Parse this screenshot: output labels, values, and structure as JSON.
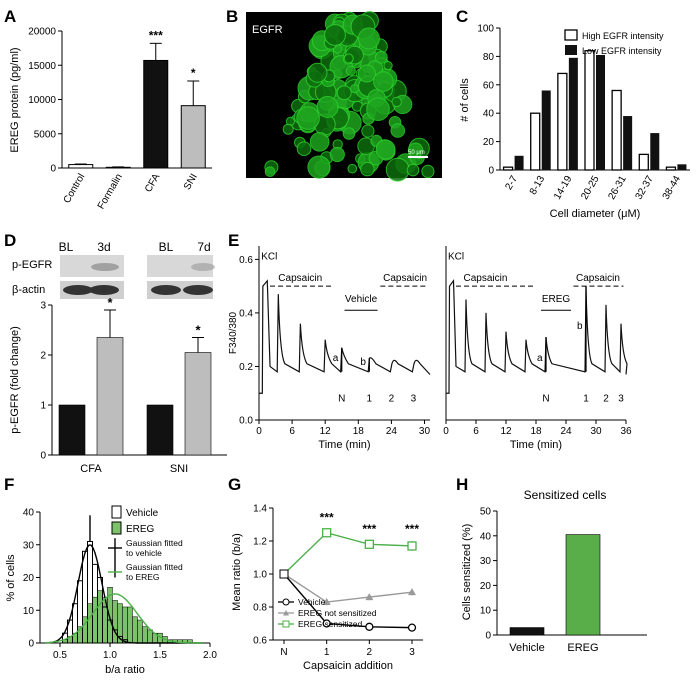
{
  "panel_letters": [
    "A",
    "B",
    "C",
    "D",
    "E",
    "F",
    "G",
    "H"
  ],
  "image_labels": {
    "egfr_label": "EGFR",
    "scale_bar": "50 μm"
  },
  "colors": {
    "black": "#111111",
    "grey": "#bdbdbd",
    "green": "#5aae4a",
    "light_green": "#7cc26a",
    "green_curve": "#4cb04a",
    "mid_grey": "#9a9a9a",
    "egfr_green": "#1fa51f"
  },
  "western": {
    "p_egfr": "p-EGFR",
    "beta_actin": "β-actin",
    "cfa_lanes": [
      "BL",
      "3d"
    ],
    "sni_lanes": [
      "BL",
      "7d"
    ]
  },
  "chart_data": [
    {
      "panel": "A",
      "type": "bar",
      "ylabel": "EREG protein (pg/ml)",
      "categories": [
        "Control",
        "Formalin",
        "CFA",
        "SNI"
      ],
      "values": [
        500,
        100,
        15700,
        9100
      ],
      "errors": [
        80,
        60,
        2500,
        3600
      ],
      "significance": [
        "",
        "",
        "***",
        "*"
      ],
      "ylim": [
        0,
        20000
      ],
      "yticks": [
        "0",
        "5000",
        "10000",
        "15000",
        "20000"
      ],
      "tick_values": [
        0,
        5000,
        10000,
        15000,
        20000
      ],
      "colors": [
        "white",
        "white",
        "#111111",
        "#bdbdbd"
      ]
    },
    {
      "panel": "C",
      "type": "bar",
      "xlabel": "Cell diameter (μM)",
      "ylabel": "# of cells",
      "categories": [
        "2-7",
        "8-13",
        "14-19",
        "20-25",
        "26-31",
        "32-37",
        "38-44"
      ],
      "series": [
        {
          "name": "High EGFR intensity",
          "values": [
            2,
            40,
            68,
            84,
            56,
            11,
            2
          ]
        },
        {
          "name": "Low EGFR intensity",
          "values": [
            10,
            56,
            79,
            81,
            38,
            26,
            4
          ]
        }
      ],
      "ylim": [
        0,
        100
      ],
      "yticks": [
        "0",
        "20",
        "40",
        "60",
        "80",
        "100"
      ],
      "tick_values": [
        0,
        20,
        40,
        60,
        80,
        100
      ],
      "legend": "top-right"
    },
    {
      "panel": "D",
      "type": "bar",
      "ylabel": "p-EGFR (fold change)",
      "groups": [
        "CFA",
        "SNI"
      ],
      "values": [
        1,
        2.35,
        1,
        2.05
      ],
      "errors": [
        0,
        0.55,
        0,
        0.3
      ],
      "significance": [
        "",
        "*",
        "",
        "*"
      ],
      "colors": [
        "#111111",
        "#bdbdbd",
        "#111111",
        "#bdbdbd"
      ],
      "ylim": [
        0,
        3
      ],
      "yticks": [
        "0",
        "1",
        "2",
        "3"
      ],
      "tick_values": [
        0,
        1,
        2,
        3
      ]
    },
    {
      "panel": "E",
      "type": "line",
      "ylabel": "F340/380",
      "yticks": [
        "0.0",
        "0.2",
        "0.4",
        "0.6"
      ],
      "tick_values": [
        0,
        0.2,
        0.4,
        0.6
      ],
      "ylim": [
        0,
        0.65
      ],
      "traces": [
        {
          "xlabel": "Time (min)",
          "xticks": [
            "0",
            "6",
            "12",
            "18",
            "24",
            "30"
          ],
          "tick_values": [
            0,
            6,
            12,
            18,
            24,
            30
          ],
          "xlim": [
            0,
            31
          ],
          "labels": {
            "kcl": "KCl",
            "capsaicin1": "Capsaicin",
            "treatment": "Vehicle",
            "capsaicin2": "Capsaicin",
            "a": "a",
            "b": "b",
            "n": "N",
            "one": "1",
            "two": "2",
            "three": "3"
          },
          "peaks_time": [
            3.5,
            7.5,
            12,
            15,
            20,
            24,
            28
          ]
        },
        {
          "xlabel": "Time (min)",
          "xticks": [
            "0",
            "6",
            "12",
            "18",
            "24",
            "30",
            "36"
          ],
          "tick_values": [
            0,
            6,
            12,
            18,
            24,
            30,
            36
          ],
          "xlim": [
            0,
            36
          ],
          "labels": {
            "kcl": "KCl",
            "capsaicin1": "Capsaicin",
            "treatment": "EREG",
            "capsaicin2": "Capsaicin",
            "a": "a",
            "b": "b",
            "n": "N",
            "one": "1",
            "two": "2",
            "three": "3"
          },
          "peaks_time": [
            4,
            8,
            12,
            16,
            20,
            28,
            32,
            35
          ]
        }
      ]
    },
    {
      "panel": "F",
      "type": "bar",
      "xlabel": "b/a ratio",
      "ylabel": "% of cells",
      "series": [
        {
          "name": "Vehicle",
          "bins": [
            0.55,
            0.6,
            0.65,
            0.7,
            0.75,
            0.8,
            0.85,
            0.9,
            0.95,
            1.0,
            1.05,
            1.1,
            1.15
          ],
          "values": [
            3,
            7,
            12,
            19,
            28,
            31,
            24,
            20,
            11,
            7,
            4,
            2,
            1
          ]
        },
        {
          "name": "EREG",
          "bins": [
            0.55,
            0.6,
            0.65,
            0.7,
            0.75,
            0.8,
            0.85,
            0.9,
            0.95,
            1.0,
            1.05,
            1.1,
            1.15,
            1.2,
            1.25,
            1.3,
            1.35,
            1.4,
            1.45,
            1.5,
            1.55,
            1.6,
            1.65,
            1.7,
            1.75,
            1.8
          ],
          "values": [
            1,
            2,
            3,
            5,
            8,
            12,
            14,
            16,
            14,
            17,
            13,
            12,
            11,
            11,
            8,
            7,
            5,
            4,
            3,
            3,
            2,
            1,
            1,
            1,
            1,
            1
          ]
        }
      ],
      "fits": [
        "Gaussian fitted to vehicle",
        "Gaussian fitted to EREG"
      ],
      "xlim": [
        0.3,
        2.0
      ],
      "ylim": [
        0,
        40
      ],
      "xticks": [
        "0.5",
        "1.0",
        "1.5",
        "2.0"
      ],
      "xtick_values": [
        0.5,
        1.0,
        1.5,
        2.0
      ],
      "yticks": [
        "0",
        "10",
        "20",
        "30",
        "40"
      ],
      "ytick_values": [
        0,
        10,
        20,
        30,
        40
      ],
      "legend": "top-right"
    },
    {
      "panel": "G",
      "type": "line",
      "xlabel": "Capsaicin addition",
      "ylabel": "Mean ratio (b/a)",
      "categories": [
        "N",
        "1",
        "2",
        "3"
      ],
      "series": [
        {
          "name": "Vehicle",
          "values": [
            1.0,
            0.7,
            0.68,
            0.675
          ],
          "errors": [
            0,
            0.01,
            0.01,
            0.01
          ]
        },
        {
          "name": "EREG not sensitized",
          "values": [
            1.0,
            0.83,
            0.86,
            0.89
          ],
          "errors": [
            0,
            0.02,
            0.02,
            0.02
          ]
        },
        {
          "name": "EREG sensitized",
          "values": [
            1.0,
            1.25,
            1.18,
            1.17
          ],
          "errors": [
            0,
            0.02,
            0.02,
            0.03
          ]
        }
      ],
      "significance": [
        "",
        "***",
        "***",
        "***"
      ],
      "ylim": [
        0.6,
        1.4
      ],
      "yticks": [
        "0.6",
        "0.8",
        "1.0",
        "1.2",
        "1.4"
      ],
      "tick_values": [
        0.6,
        0.8,
        1.0,
        1.2,
        1.4
      ],
      "legend": "bottom-left"
    },
    {
      "panel": "H",
      "type": "bar",
      "title": "Sensitized cells",
      "ylabel": "Cells sensitized (%)",
      "categories": [
        "Vehicle",
        "EREG"
      ],
      "values": [
        3,
        40.5
      ],
      "colors": [
        "#111111",
        "#5aae4a"
      ],
      "ylim": [
        0,
        50
      ],
      "yticks": [
        "0",
        "10",
        "20",
        "30",
        "40",
        "50"
      ],
      "tick_values": [
        0,
        10,
        20,
        30,
        40,
        50
      ]
    }
  ]
}
